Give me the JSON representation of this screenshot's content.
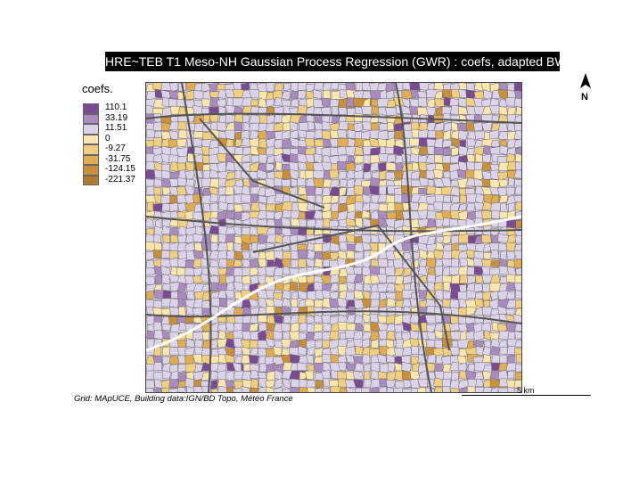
{
  "title": "HRE~TEB T1 Meso-NH Gaussian Process Regression (GWR) : coefs, adapted BW",
  "legend": {
    "title": "coefs.",
    "items": [
      {
        "label": "110.1",
        "color": "#7a4a92"
      },
      {
        "label": "33.19",
        "color": "#a98bc0"
      },
      {
        "label": "11.51",
        "color": "#dcd3e8"
      },
      {
        "label": "0",
        "color": "#fbe6ad"
      },
      {
        "label": "-9.27",
        "color": "#f1cf81"
      },
      {
        "label": "-31.75",
        "color": "#e0ad52"
      },
      {
        "label": "-124.15",
        "color": "#c98f3a"
      },
      {
        "label": "-221.37",
        "color": "#b27a2e"
      }
    ]
  },
  "north_arrow": {
    "label": "N",
    "icon": "north-arrow-icon"
  },
  "scale_bar": {
    "label": "5 km"
  },
  "credits": "Grid: MApUCE, Building data:IGN/BD Topo, Météo France",
  "colors": {
    "base": "#d9d0e6",
    "roads": "#6a6a6a",
    "water": "#ffffff",
    "outline": "#444444"
  }
}
